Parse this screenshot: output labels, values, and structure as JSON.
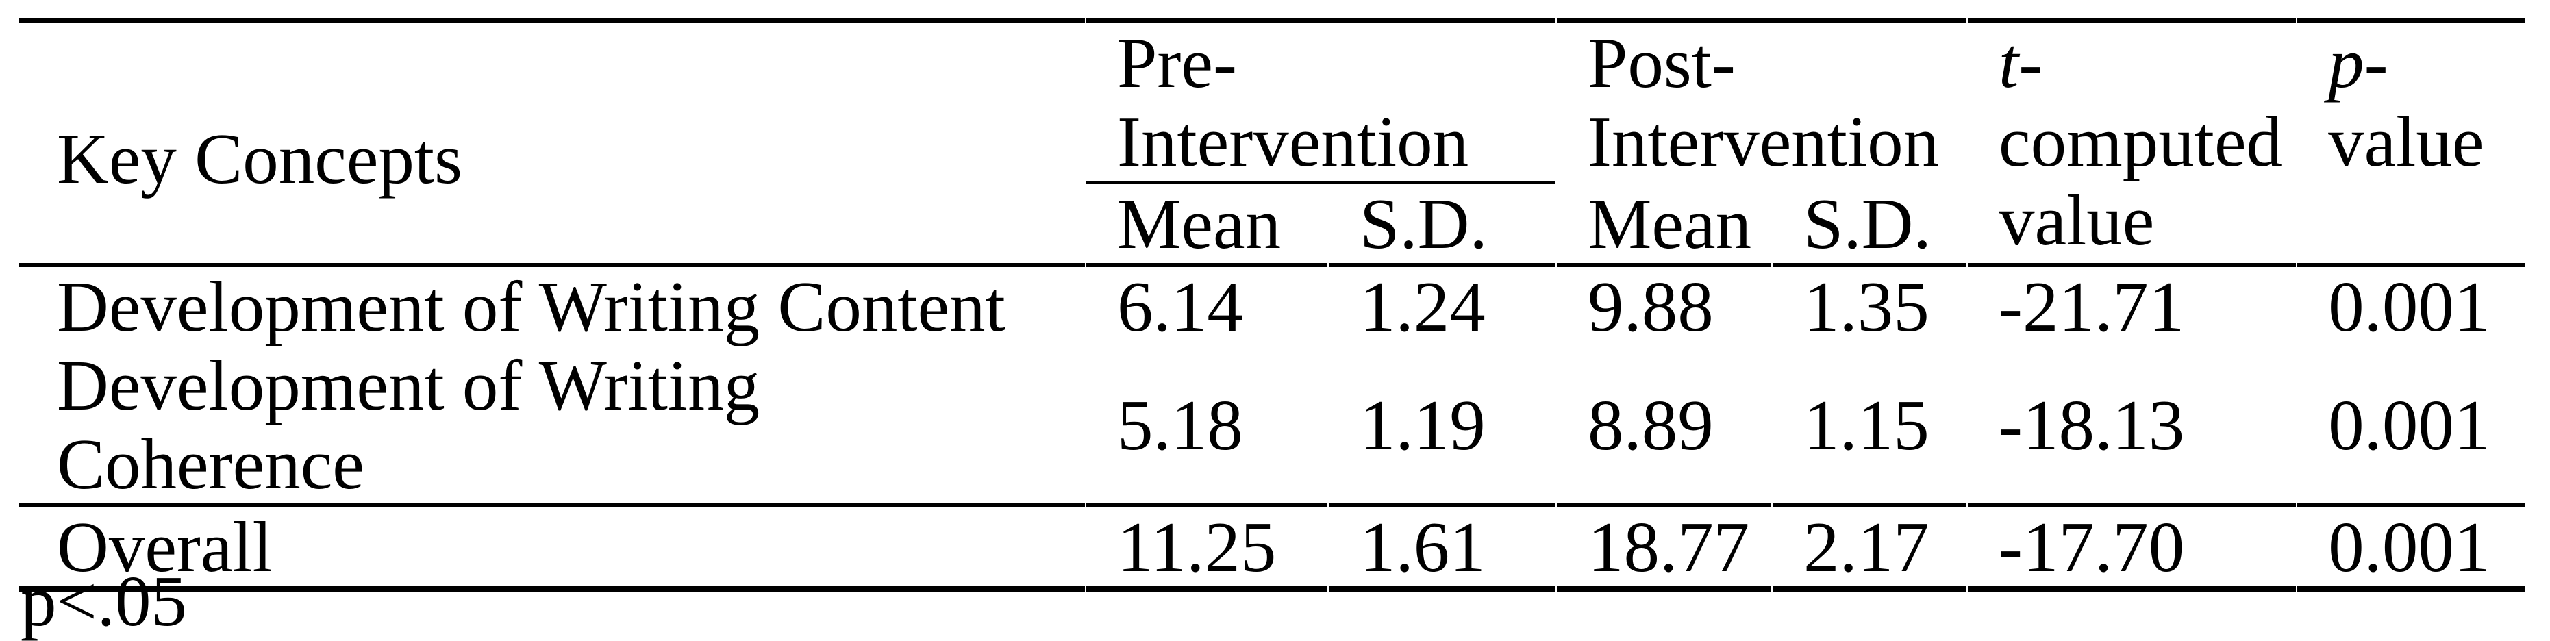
{
  "colors": {
    "text": "#000000",
    "background": "#ffffff"
  },
  "table": {
    "key_concepts_header": "Key Concepts",
    "pre_header": "Pre-\nIntervention",
    "post_header": "Post-\nIntervention",
    "t_header": {
      "italic": "t",
      "rest": "-\ncomputed\nvalue"
    },
    "p_header": {
      "italic": "p",
      "rest": "-\nvalue"
    },
    "sub_headers": {
      "pre_mean": "Mean",
      "pre_sd": "S.D.",
      "post_mean": "Mean",
      "post_sd": "S.D."
    },
    "rows": [
      {
        "label": "Development of Writing Content",
        "pre_mean": "6.14",
        "pre_sd": "1.24",
        "post_mean": "9.88",
        "post_sd": "1.35",
        "t": "-21.71",
        "p": "0.001"
      },
      {
        "label": "Development of Writing Coherence",
        "pre_mean": "5.18",
        "pre_sd": "1.19",
        "post_mean": "8.89",
        "post_sd": "1.15",
        "t": "-18.13",
        "p": "0.001"
      },
      {
        "label": "Overall",
        "pre_mean": "11.25",
        "pre_sd": "1.61",
        "post_mean": "18.77",
        "post_sd": "2.17",
        "t": "-17.70",
        "p": "0.001"
      }
    ],
    "footnote": "p<.05"
  }
}
